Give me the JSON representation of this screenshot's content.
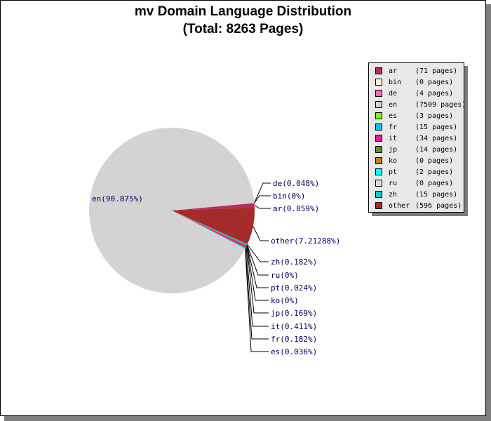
{
  "chart_data": {
    "type": "pie",
    "title_line1": "mv Domain Language Distribution",
    "title_line2": "(Total: 8263 Pages)",
    "slices": [
      {
        "name": "ar",
        "pages": 71,
        "label": "ar(0.859%)",
        "legend": "(71 pages)",
        "color": "#b03060"
      },
      {
        "name": "bin",
        "pages": 0,
        "label": "bin(0%)",
        "legend": "(0 pages)",
        "color": "#ffefd5"
      },
      {
        "name": "de",
        "pages": 4,
        "label": "de(0.048%)",
        "legend": "(4 pages)",
        "color": "#ff69b4"
      },
      {
        "name": "en",
        "pages": 7509,
        "label": "en(90.875%)",
        "legend": "(7509 pages)",
        "color": "#d3d3d3"
      },
      {
        "name": "es",
        "pages": 3,
        "label": "es(0.036%)",
        "legend": "(3 pages)",
        "color": "#7cfc00"
      },
      {
        "name": "fr",
        "pages": 15,
        "label": "fr(0.182%)",
        "legend": "(15 pages)",
        "color": "#00bfff"
      },
      {
        "name": "it",
        "pages": 34,
        "label": "it(0.411%)",
        "legend": "(34 pages)",
        "color": "#ff1493"
      },
      {
        "name": "jp",
        "pages": 14,
        "label": "jp(0.169%)",
        "legend": "(14 pages)",
        "color": "#6b8e23"
      },
      {
        "name": "ko",
        "pages": 0,
        "label": "ko(0%)",
        "legend": "(0 pages)",
        "color": "#b8860b"
      },
      {
        "name": "pt",
        "pages": 2,
        "label": "pt(0.024%)",
        "legend": "(2 pages)",
        "color": "#00ffff"
      },
      {
        "name": "ru",
        "pages": 0,
        "label": "ru(0%)",
        "legend": "(0 pages)",
        "color": "#dcdcdc"
      },
      {
        "name": "zh",
        "pages": 15,
        "label": "zh(0.182%)",
        "legend": "(15 pages)",
        "color": "#00ced1"
      },
      {
        "name": "other",
        "pages": 596,
        "label": "other(7.21288%)",
        "legend": "(596 pages)",
        "color": "#a52a2a"
      }
    ],
    "legend_placement": "right"
  }
}
